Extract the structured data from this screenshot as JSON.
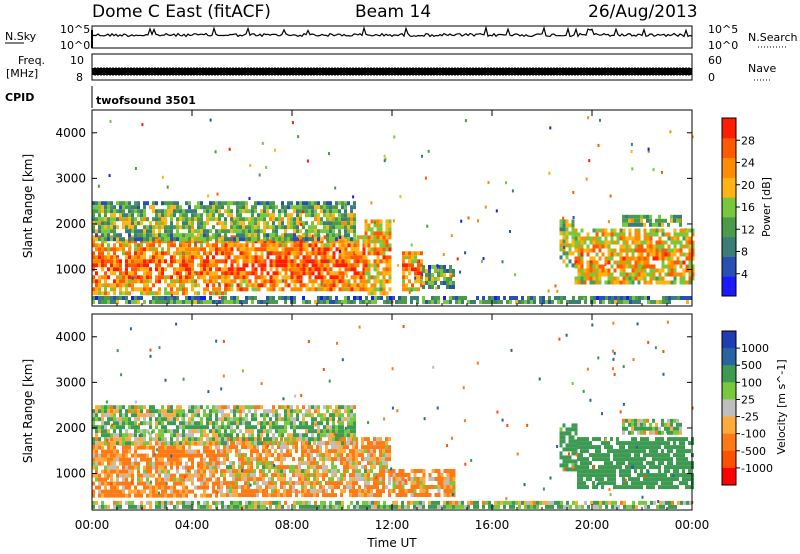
{
  "header": {
    "station": "Dome C East (fitACF)",
    "beam": "Beam 14",
    "date": "26/Aug/2013"
  },
  "strips": {
    "nsky_label": "N.Sky",
    "nsearch_label": "N.Search",
    "nsky_ticks": [
      "10^5",
      "10^0"
    ],
    "nsearch_ticks": [
      "10^5",
      "10^0"
    ],
    "freq_label_top": "Freq.",
    "freq_label_bottom": "[MHz]",
    "freq_ticks": [
      "10",
      "8"
    ],
    "nave_label": "Nave",
    "nave_ticks": [
      "60",
      "0"
    ],
    "cpid_label": "CPID",
    "cpid_text": "twofsound 3501"
  },
  "chart_data": [
    {
      "type": "heatmap",
      "name": "Power",
      "ylabel": "Slant Range [km]",
      "yticks": [
        1000,
        2000,
        3000,
        4000
      ],
      "ylim": [
        200,
        4500
      ],
      "xlim": [
        0,
        24
      ],
      "x_tick_hours": [
        0,
        4,
        8,
        12,
        16,
        20,
        24
      ],
      "colorbar": {
        "label": "Power [dB]",
        "ticks": [
          "4",
          "8",
          "12",
          "16",
          "20",
          "24",
          "28"
        ],
        "range": [
          0,
          30
        ]
      },
      "echo_regions": [
        {
          "t0": 0.0,
          "t1": 5.3,
          "r0": 500,
          "r1": 1750,
          "level": 20
        },
        {
          "t0": 5.3,
          "t1": 10.9,
          "r0": 550,
          "r1": 1750,
          "level": 21
        },
        {
          "t0": 10.9,
          "t1": 11.9,
          "r0": 500,
          "r1": 2100,
          "level": 18
        },
        {
          "t0": 12.4,
          "t1": 13.2,
          "r0": 600,
          "r1": 1400,
          "level": 19
        },
        {
          "t0": 13.2,
          "t1": 14.5,
          "r0": 600,
          "r1": 1100,
          "level": 8
        },
        {
          "t0": 0.0,
          "t1": 10.5,
          "r0": 1700,
          "r1": 2500,
          "level": 10
        },
        {
          "t0": 18.7,
          "t1": 19.3,
          "r0": 1100,
          "r1": 2100,
          "level": 12
        },
        {
          "t0": 19.3,
          "t1": 24.0,
          "r0": 700,
          "r1": 1900,
          "level": 17
        },
        {
          "t0": 21.2,
          "t1": 23.5,
          "r0": 2000,
          "r1": 2200,
          "level": 10
        },
        {
          "t0": 0.0,
          "t1": 24.0,
          "r0": 250,
          "r1": 420,
          "level": 6
        }
      ]
    },
    {
      "type": "heatmap",
      "name": "Velocity",
      "ylabel": "Slant Range [km]",
      "yticks": [
        1000,
        2000,
        3000,
        4000
      ],
      "ylim": [
        200,
        4500
      ],
      "xlim": [
        0,
        24
      ],
      "x_tick_hours": [
        0,
        4,
        8,
        12,
        16,
        20,
        24
      ],
      "xlabel": "Time UT",
      "x_tick_labels": [
        "00:00",
        "04:00",
        "08:00",
        "12:00",
        "16:00",
        "20:00",
        "00:00"
      ],
      "colorbar": {
        "label": "Velocity [m s^-1]",
        "ticks": [
          "1000",
          "500",
          "100",
          "25",
          "-25",
          "-100",
          "-500",
          "-1000"
        ],
        "range": [
          -1000,
          1000
        ]
      },
      "echo_regions": [
        {
          "t0": 0.0,
          "t1": 5.0,
          "r0": 500,
          "r1": 1700,
          "level": -200
        },
        {
          "t0": 5.0,
          "t1": 11.9,
          "r0": 500,
          "r1": 1800,
          "level": -150
        },
        {
          "t0": 11.9,
          "t1": 14.5,
          "r0": 500,
          "r1": 1100,
          "level": -180
        },
        {
          "t0": 0.0,
          "t1": 10.5,
          "r0": 1700,
          "r1": 2500,
          "level": 0
        },
        {
          "t0": 18.7,
          "t1": 19.4,
          "r0": 1100,
          "r1": 2100,
          "level": 200
        },
        {
          "t0": 19.4,
          "t1": 24.0,
          "r0": 700,
          "r1": 1800,
          "level": 250
        },
        {
          "t0": 21.2,
          "t1": 23.5,
          "r0": 1900,
          "r1": 2200,
          "level": 0
        },
        {
          "t0": 0.0,
          "t1": 24.0,
          "r0": 250,
          "r1": 400,
          "level": 0
        }
      ]
    }
  ]
}
